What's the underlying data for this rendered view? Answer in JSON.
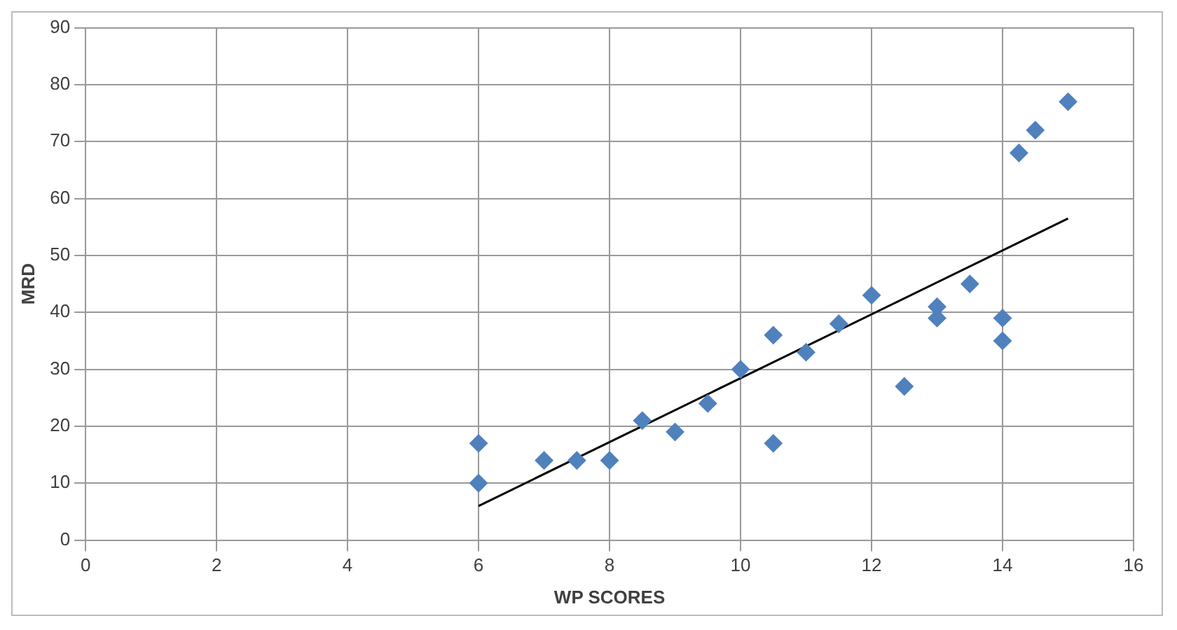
{
  "chart_data": {
    "type": "scatter",
    "xlabel": "WP SCORES",
    "ylabel": "MRD",
    "xlim": [
      0,
      16
    ],
    "xticks": [
      0,
      2,
      4,
      6,
      8,
      10,
      12,
      14,
      16
    ],
    "ylim": [
      0,
      90
    ],
    "yticks": [
      0,
      10,
      20,
      30,
      40,
      50,
      60,
      70,
      80,
      90
    ],
    "grid": true,
    "legend": false,
    "series": [
      {
        "type": "scatter",
        "color": "#4f81bd",
        "marker": "diamond",
        "x": [
          6,
          6,
          7,
          7.5,
          8,
          8.5,
          9,
          9.5,
          10,
          10.5,
          10.5,
          11,
          11.5,
          12,
          12.5,
          13,
          13,
          13.5,
          14,
          14,
          14.25,
          14.5,
          15
        ],
        "values": [
          17,
          10,
          14,
          14,
          14,
          21,
          19,
          24,
          30,
          36,
          17,
          33,
          38,
          43,
          27,
          41,
          39,
          45,
          39,
          35,
          68,
          72,
          77
        ]
      },
      {
        "type": "line",
        "color": "#000000",
        "marker": "none",
        "line_style": "solid",
        "x": [
          6,
          15
        ],
        "values": [
          6,
          56.5
        ]
      }
    ]
  }
}
